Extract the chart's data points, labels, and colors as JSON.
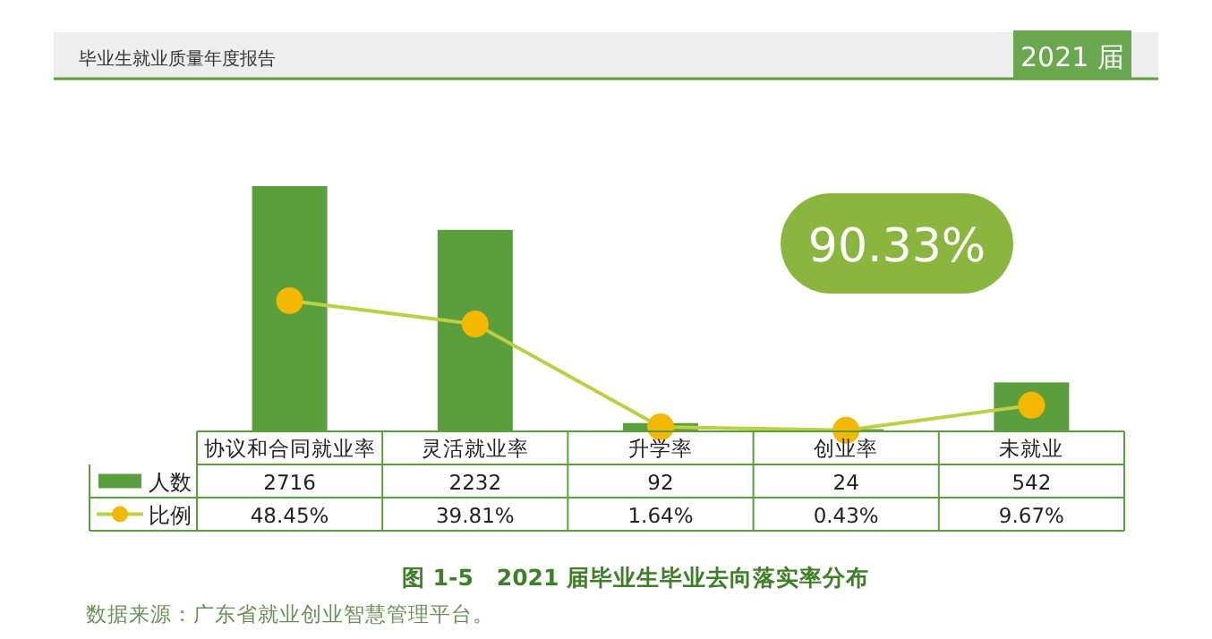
{
  "chart_data": {
    "type": "bar",
    "title": "图 1-5　2021 届毕业生毕业去向落实率分布",
    "categories": [
      "协议和合同就业率",
      "灵活就业率",
      "升学率",
      "创业率",
      "未就业"
    ],
    "series": [
      {
        "name": "人数",
        "color": "#5b9f3c",
        "values": [
          2716,
          2232,
          92,
          24,
          542
        ],
        "value_labels": [
          "2716",
          "2232",
          "92",
          "24",
          "542"
        ]
      },
      {
        "name": "比例",
        "type": "line",
        "axis": "y2",
        "color": "#bccf45",
        "marker": "circle",
        "values": [
          48.45,
          39.81,
          1.64,
          0.43,
          9.67
        ],
        "value_labels": [
          "48.45%",
          "39.81%",
          "1.64%",
          "0.43%",
          "9.67%"
        ]
      }
    ],
    "data_labels": true,
    "legend": "bottom",
    "annotations": [
      "毕业生就业质量年度报告",
      "2021 届",
      "90.33%",
      "数据来源：广东省就业创业智慧管理平台。"
    ]
  }
}
